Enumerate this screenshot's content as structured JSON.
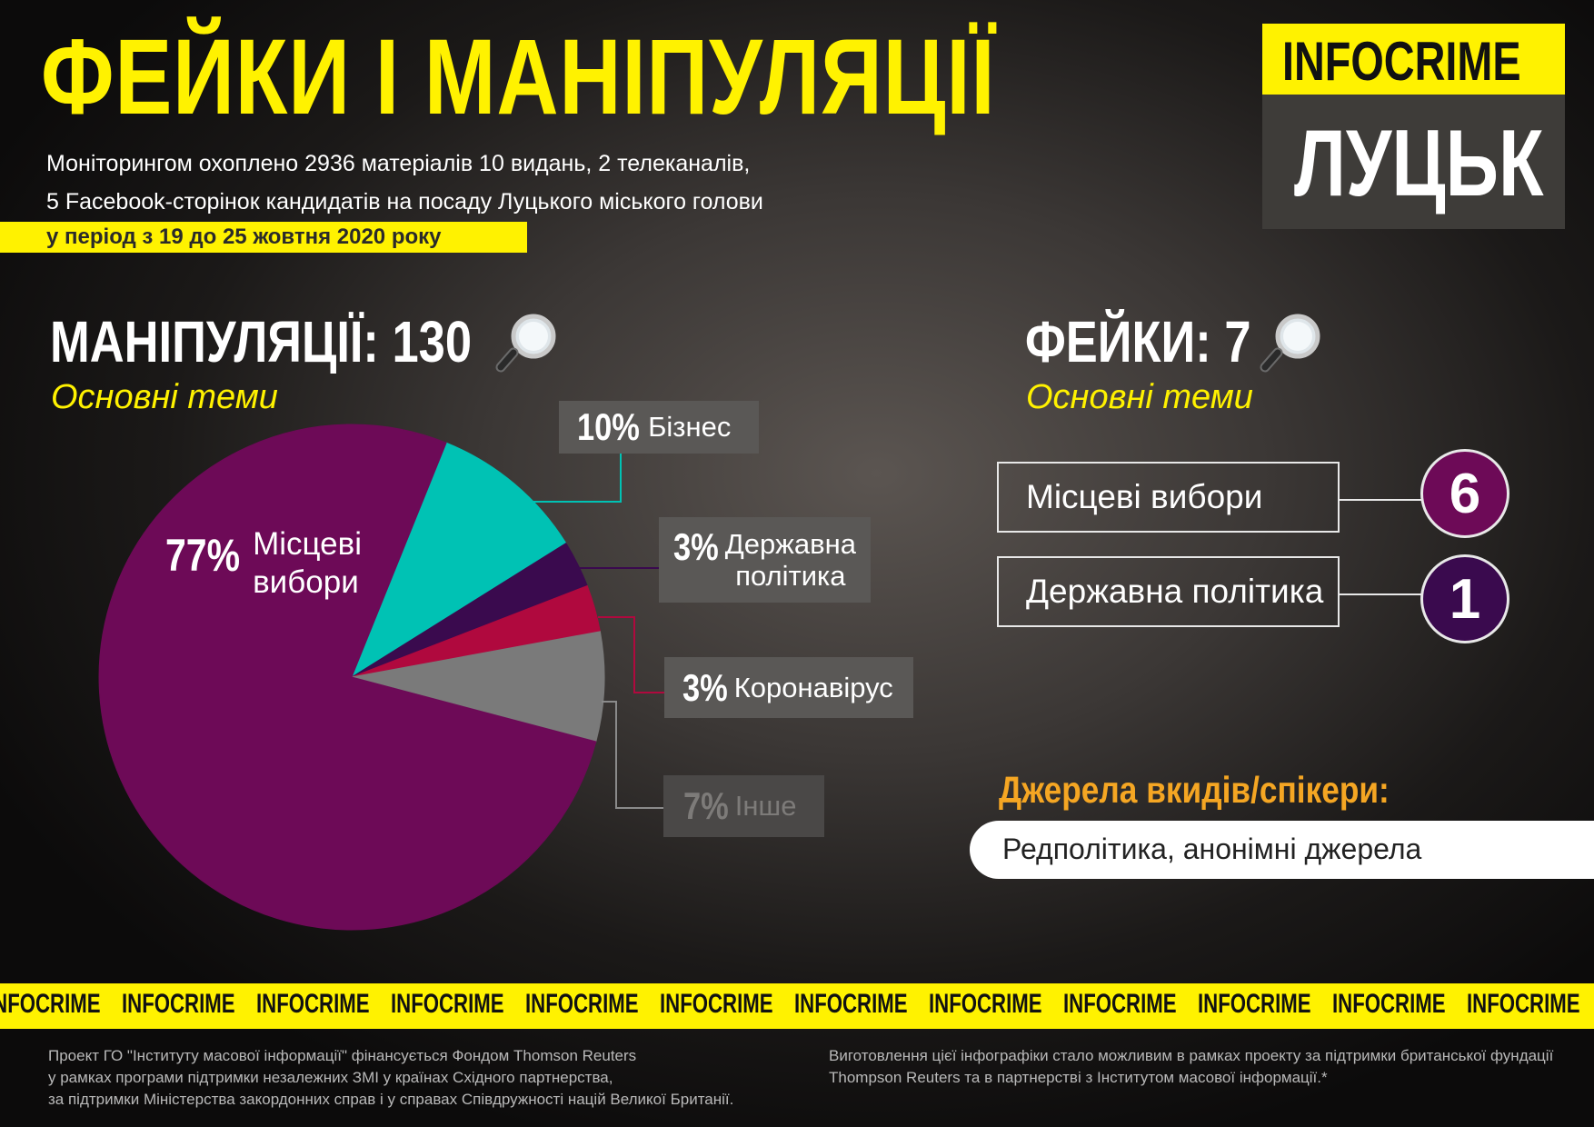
{
  "header": {
    "title": "ФЕЙКИ І МАНІПУЛЯЦІЇ",
    "subtitle_line1": "Моніторингом охоплено 2936 матеріалів 10 видань, 2 телеканалів,",
    "subtitle_line2": "5 Facebook-сторінок кандидатів на посаду Луцького міського голови",
    "period": "у період з 19 до 25 жовтня 2020 року"
  },
  "logo": {
    "brand": "INFOCRIME",
    "city": "ЛУЦЬК"
  },
  "manipulations": {
    "heading": "МАНІПУЛЯЦІЇ: 130",
    "subheading": "Основні теми"
  },
  "chart_data": {
    "type": "pie",
    "slices": [
      {
        "label_pct": "77%",
        "label": "Місцеві вибори",
        "value": 77,
        "color": "#6d0a57"
      },
      {
        "label_pct": "10%",
        "label": "Бізнес",
        "value": 10,
        "color": "#00c2b4"
      },
      {
        "label_pct": "3%",
        "label": "Державна політика",
        "value": 3,
        "color": "#3a0a4e"
      },
      {
        "label_pct": "3%",
        "label": "Коронавірус",
        "value": 3,
        "color": "#b0093e"
      },
      {
        "label_pct": "7%",
        "label": "Інше",
        "value": 7,
        "color": "#7a7a7a"
      }
    ],
    "label_lines": {
      "local": [
        "Місцеві",
        "вибори"
      ],
      "state": [
        "Державна",
        "політика"
      ]
    }
  },
  "fakes": {
    "heading": "ФЕЙКИ: 7",
    "subheading": "Основні теми",
    "items": [
      {
        "label": "Місцеві вибори",
        "count": "6",
        "color": "#6d0a57"
      },
      {
        "label": "Державна політика",
        "count": "1",
        "color": "#3a0a4e"
      }
    ]
  },
  "sources": {
    "heading": "Джерела вкидів/спікери:",
    "text": "Редполітика, анонімні джерела"
  },
  "ticker": {
    "word": "INFOCRIME",
    "items": [
      "INFOCRIME",
      "INFOCRIME",
      "INFOCRIME",
      "INFOCRIME",
      "INFOCRIME",
      "INFOCRIME",
      "INFOCRIME",
      "INFOCRIME",
      "INFOCRIME",
      "INFOCRIME",
      "INFOCRIME",
      "INFOCRIME"
    ]
  },
  "footer": {
    "left": [
      "Проект ГО \"Інституту масової інформації\" фінансується Фондом Thomson Reuters",
      "у рамках програми підтримки незалежних ЗМІ у країнах Східного партнерства,",
      "за підтримки Міністерства закордонних справ і у справах Співдружності націй Великої Британії."
    ],
    "right": [
      "Виготовлення цієї інфографіки стало можливим в рамках проекту за підтримки британської фундації",
      "Thompson Reuters та в партнерстві з Інститутом масової інформації.*"
    ]
  },
  "colors": {
    "accent_yellow": "#fff200",
    "sources_orange": "#f5a623",
    "label_box": "#5a5856"
  },
  "icons": {
    "magnifier": "magnifier-icon"
  }
}
